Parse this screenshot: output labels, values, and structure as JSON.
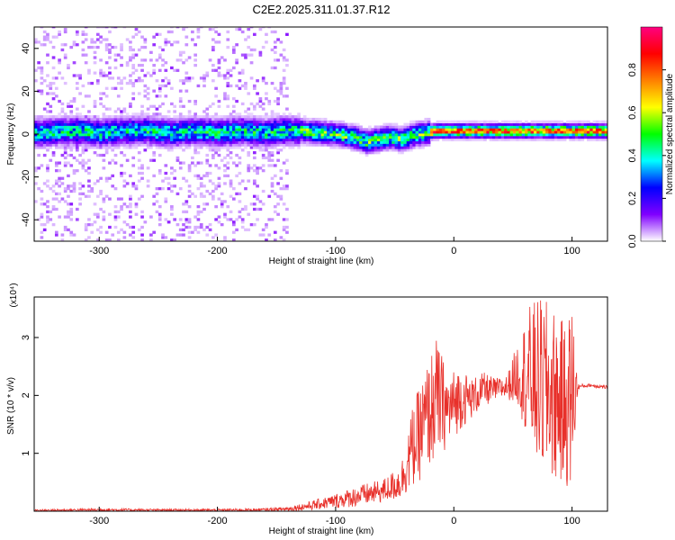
{
  "title": "C2E2.2025.311.01.37.R12",
  "chart_data": [
    {
      "type": "heatmap",
      "xlabel": "Height of straight line (km)",
      "ylabel": "Frequency (Hz)",
      "xlim": [
        -355,
        130
      ],
      "ylim": [
        -50,
        50
      ],
      "x_ticks": [
        -300,
        -200,
        -100,
        0,
        100
      ],
      "y_ticks": [
        -40,
        -20,
        0,
        20,
        40
      ],
      "colorbar": {
        "label": "Normalized spectral amplitude",
        "range": [
          0,
          1
        ],
        "ticks": [
          0.0,
          0.2,
          0.4,
          0.6,
          0.8
        ],
        "colors": [
          "#ffffff",
          "#8000ff",
          "#0000ff",
          "#00ffff",
          "#00ff00",
          "#ffff00",
          "#ff8000",
          "#ff0000",
          "#ff0080"
        ]
      },
      "ridge_x": [
        -355,
        -340,
        -320,
        -300,
        -280,
        -260,
        -240,
        -220,
        -200,
        -180,
        -160,
        -150,
        -130,
        -110,
        -95,
        -85,
        -75,
        -65,
        -55,
        -45,
        -35,
        -25,
        -15,
        0,
        20,
        40,
        60,
        80,
        100,
        130
      ],
      "ridge_y": [
        0,
        0.5,
        1,
        0,
        1,
        1,
        0,
        1,
        0,
        1,
        0,
        1,
        1,
        0,
        -1,
        -2,
        -4,
        -3,
        -2,
        -3,
        -1,
        0,
        1,
        1,
        1,
        1,
        1,
        1,
        1,
        1
      ]
    },
    {
      "type": "line",
      "xlabel": "Height of straight line (km)",
      "ylabel": "SNR (10 * v/v)",
      "y_multiplier": "(x10⁴)",
      "xlim": [
        -355,
        130
      ],
      "ylim": [
        0,
        3.7
      ],
      "x_ticks": [
        -300,
        -200,
        -100,
        0,
        100
      ],
      "y_ticks": [
        1,
        2,
        3
      ],
      "series": [
        {
          "color": "#e8302a",
          "x": [
            -355,
            -300,
            -250,
            -200,
            -160,
            -140,
            -120,
            -100,
            -80,
            -60,
            -45,
            -35,
            -25,
            -15,
            -5,
            5,
            15,
            25,
            35,
            45,
            55,
            65,
            75,
            85,
            95,
            100,
            105,
            115,
            130
          ],
          "envelope_low": [
            0.0,
            0.0,
            0.0,
            0.0,
            0.0,
            0.0,
            0.02,
            0.05,
            0.08,
            0.15,
            0.2,
            0.4,
            0.6,
            0.9,
            1.1,
            1.4,
            1.6,
            1.8,
            1.9,
            1.95,
            1.8,
            1.0,
            0.6,
            0.5,
            0.4,
            0.3,
            2.1,
            2.15,
            2.1
          ],
          "envelope_high": [
            0.03,
            0.05,
            0.04,
            0.04,
            0.05,
            0.08,
            0.18,
            0.3,
            0.45,
            0.55,
            0.8,
            1.8,
            2.4,
            3.0,
            2.4,
            2.5,
            2.3,
            2.4,
            2.3,
            2.35,
            3.0,
            3.6,
            3.7,
            3.5,
            3.2,
            3.7,
            2.2,
            2.2,
            2.18
          ]
        }
      ]
    }
  ]
}
